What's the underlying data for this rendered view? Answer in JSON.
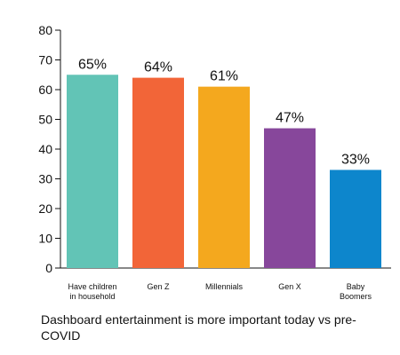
{
  "chart_data": {
    "type": "bar",
    "categories": [
      "Have children in household",
      "Gen Z",
      "Millennials",
      "Gen X",
      "Baby Boomers"
    ],
    "values": [
      65,
      64,
      61,
      47,
      33
    ],
    "data_labels": [
      "65%",
      "64%",
      "61%",
      "47%",
      "33%"
    ],
    "colors": [
      "#62c4b6",
      "#f26538",
      "#f4a81e",
      "#87479b",
      "#0d86cc"
    ],
    "ylim": [
      0,
      80
    ],
    "yticks": [
      0,
      10,
      20,
      30,
      40,
      50,
      60,
      70,
      80
    ],
    "grid": false,
    "legend": "none",
    "xlabel": "",
    "ylabel": ""
  },
  "caption": "Dashboard entertainment is more important today vs pre-COVID"
}
